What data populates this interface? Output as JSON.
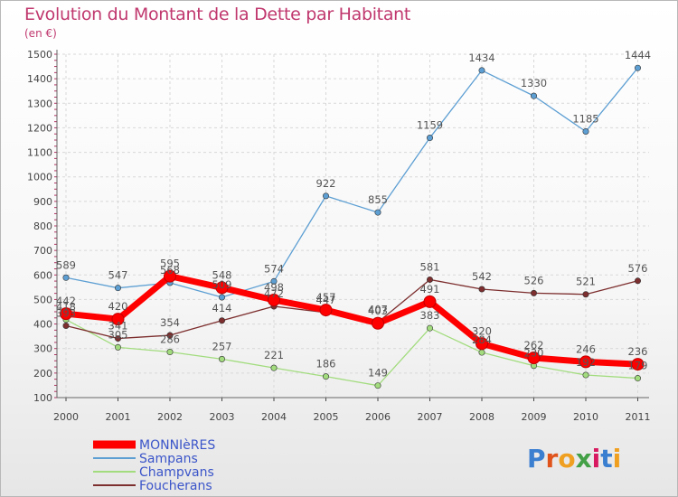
{
  "header": {
    "title": "Evolution du Montant de la Dette par Habitant",
    "subtitle": "(en €)"
  },
  "logo": {
    "text": "Proxiti"
  },
  "chart_data": {
    "type": "line",
    "title": "Evolution du Montant de la Dette par Habitant",
    "subtitle": "(en €)",
    "xlabel": "",
    "ylabel": "",
    "x": [
      2000,
      2001,
      2002,
      2003,
      2004,
      2005,
      2006,
      2007,
      2008,
      2009,
      2010,
      2011
    ],
    "ylim": [
      100,
      1500
    ],
    "yticks": [
      100,
      200,
      300,
      400,
      500,
      600,
      700,
      800,
      900,
      1000,
      1100,
      1200,
      1300,
      1400,
      1500
    ],
    "grid": true,
    "legend_position": "bottom-left",
    "series": [
      {
        "name": "Sampans",
        "color": "#5d9fd3",
        "values": [
          589,
          547,
          568,
          509,
          574,
          922,
          855,
          1159,
          1434,
          1330,
          1185,
          1444
        ]
      },
      {
        "name": "Champvans",
        "color": "#a2dc7e",
        "values": [
          418,
          305,
          286,
          257,
          221,
          186,
          149,
          383,
          284,
          230,
          192,
          179
        ]
      },
      {
        "name": "Foucherans",
        "color": "#7d2e2e",
        "values": [
          393,
          341,
          354,
          414,
          472,
          447,
          407,
          581,
          542,
          526,
          521,
          576
        ]
      },
      {
        "name": "MONNIèRES",
        "color": "#ff0000",
        "values": [
          442,
          420,
          595,
          548,
          498,
          457,
          403,
          491,
          320,
          262,
          246,
          236
        ]
      }
    ]
  }
}
